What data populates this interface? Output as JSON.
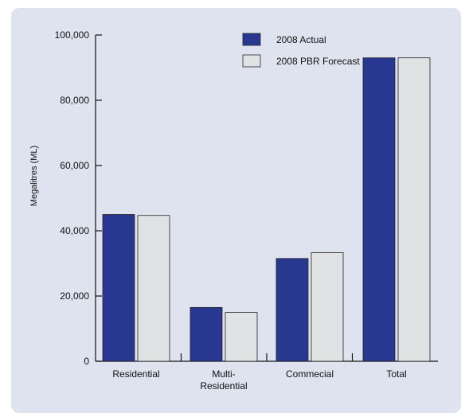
{
  "chart_data": {
    "type": "bar",
    "title": "",
    "xlabel": "",
    "ylabel": "Megalitres (ML)",
    "ylim": [
      0,
      100000
    ],
    "yticks": [
      0,
      20000,
      40000,
      60000,
      80000,
      100000
    ],
    "ytick_labels": [
      "0",
      "20,000",
      "40,000",
      "60,000",
      "80,000",
      "100,000"
    ],
    "categories": [
      [
        "Residential"
      ],
      [
        "Multi-",
        "Residential"
      ],
      [
        "Commecial"
      ],
      [
        "Total"
      ]
    ],
    "series": [
      {
        "name": "2008 Actual",
        "color": "#283891",
        "values": [
          45000,
          16500,
          31500,
          93000
        ]
      },
      {
        "name": "2008 PBR Forecast",
        "color": "#e1e2e4",
        "values": [
          44700,
          15000,
          33300,
          93000
        ]
      }
    ],
    "legend_position": "top-right",
    "grid": false
  }
}
